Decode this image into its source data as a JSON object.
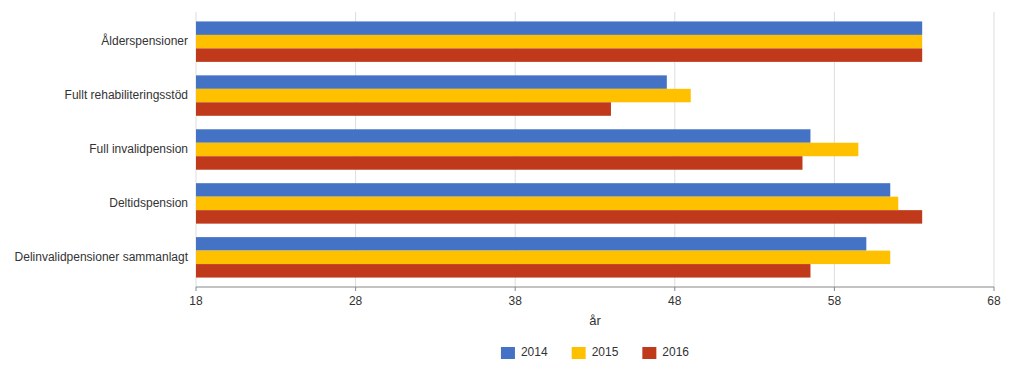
{
  "chart_data": {
    "type": "bar",
    "orientation": "horizontal",
    "categories": [
      "Delinvalidpensioner sammanlagt",
      "Deltidspension",
      "Full invalidpension",
      "Fullt rehabiliteringsstöd",
      "Ålderspensioner"
    ],
    "series": [
      {
        "name": "2014",
        "color": "#4472C4",
        "values": [
          60.0,
          61.5,
          56.5,
          47.5,
          63.5
        ]
      },
      {
        "name": "2015",
        "color": "#FFC000",
        "values": [
          61.5,
          62.0,
          59.5,
          49.0,
          63.5
        ]
      },
      {
        "name": "2016",
        "color": "#C0391B",
        "values": [
          56.5,
          63.5,
          56.0,
          44.0,
          63.5
        ]
      }
    ],
    "x_label": "år",
    "xlim": [
      18,
      68
    ],
    "xticks": [
      18,
      28,
      38,
      48,
      58,
      68
    ],
    "grid": true,
    "legend": "bottom"
  }
}
